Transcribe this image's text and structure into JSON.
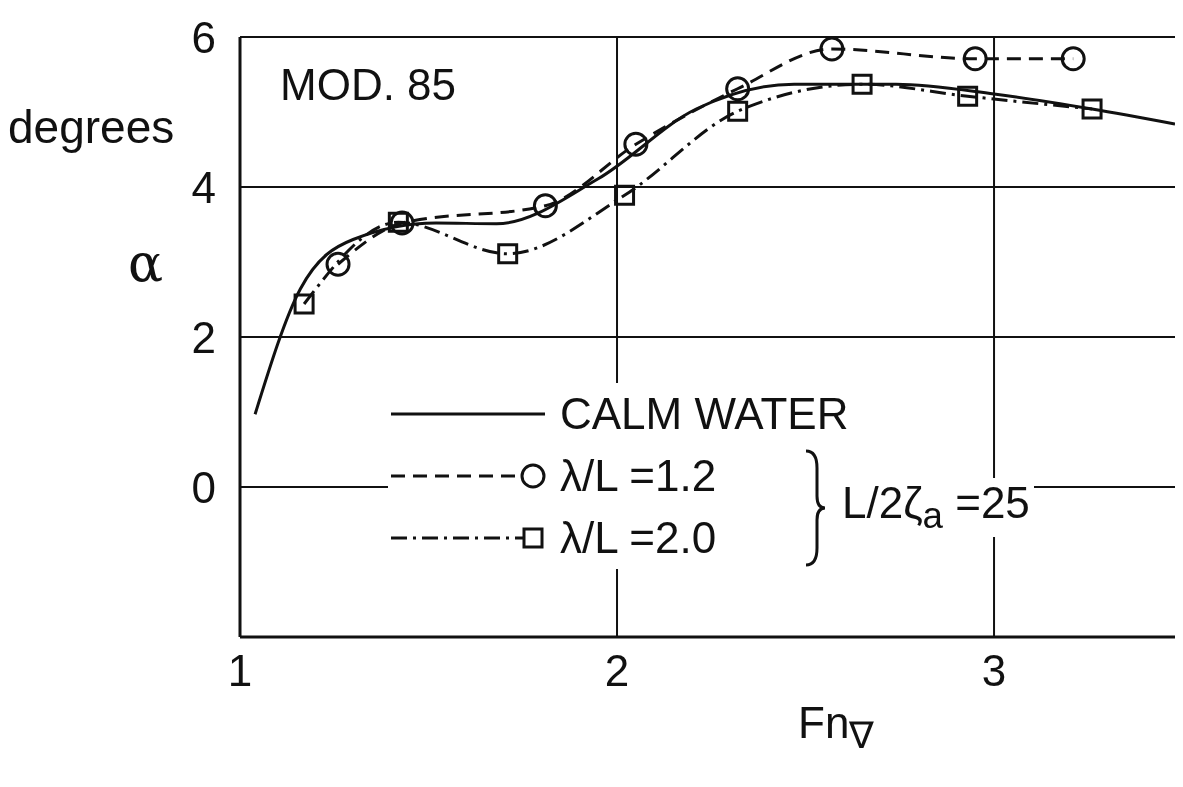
{
  "chart_data": {
    "type": "line",
    "xlabel": "Fn$_{∇}$",
    "ylabel": "α",
    "annotations": [
      "MOD. 85",
      "degrees",
      "L/2ζ$_{a}$ =25"
    ],
    "xlim": [
      1,
      3.48
    ],
    "xticks": [
      1,
      2,
      3
    ],
    "ylim": [
      -2,
      6
    ],
    "yticks": [
      0,
      2,
      4,
      6
    ],
    "grid": true,
    "legend": "bottom",
    "series": [
      {
        "name": "CALM WATER",
        "color": "#111111",
        "marker": "none",
        "line_style": "solid",
        "x": [
          1.04,
          1.16,
          1.3,
          1.52,
          1.68,
          1.95,
          2.21,
          2.47,
          2.74,
          3.0,
          3.26,
          3.48
        ],
        "values": [
          0.97,
          2.64,
          3.3,
          3.52,
          3.51,
          4.11,
          5.04,
          5.37,
          5.37,
          5.24,
          5.04,
          4.84
        ]
      },
      {
        "name": "λ/L =1.2",
        "color": "#111111",
        "marker": "circle",
        "line_style": "dashed",
        "x": [
          1.26,
          1.43,
          1.81,
          2.05,
          2.32,
          2.57,
          2.95,
          3.21
        ],
        "values": [
          2.97,
          3.52,
          3.75,
          4.57,
          5.31,
          5.84,
          5.71,
          5.71
        ]
      },
      {
        "name": "λ/L =2.0",
        "color": "#111111",
        "marker": "square",
        "line_style": "dashdot",
        "x": [
          1.17,
          1.42,
          1.71,
          2.02,
          2.32,
          2.65,
          2.93,
          3.26
        ],
        "values": [
          2.44,
          3.53,
          3.11,
          3.89,
          5.01,
          5.37,
          5.21,
          5.04
        ]
      }
    ]
  }
}
